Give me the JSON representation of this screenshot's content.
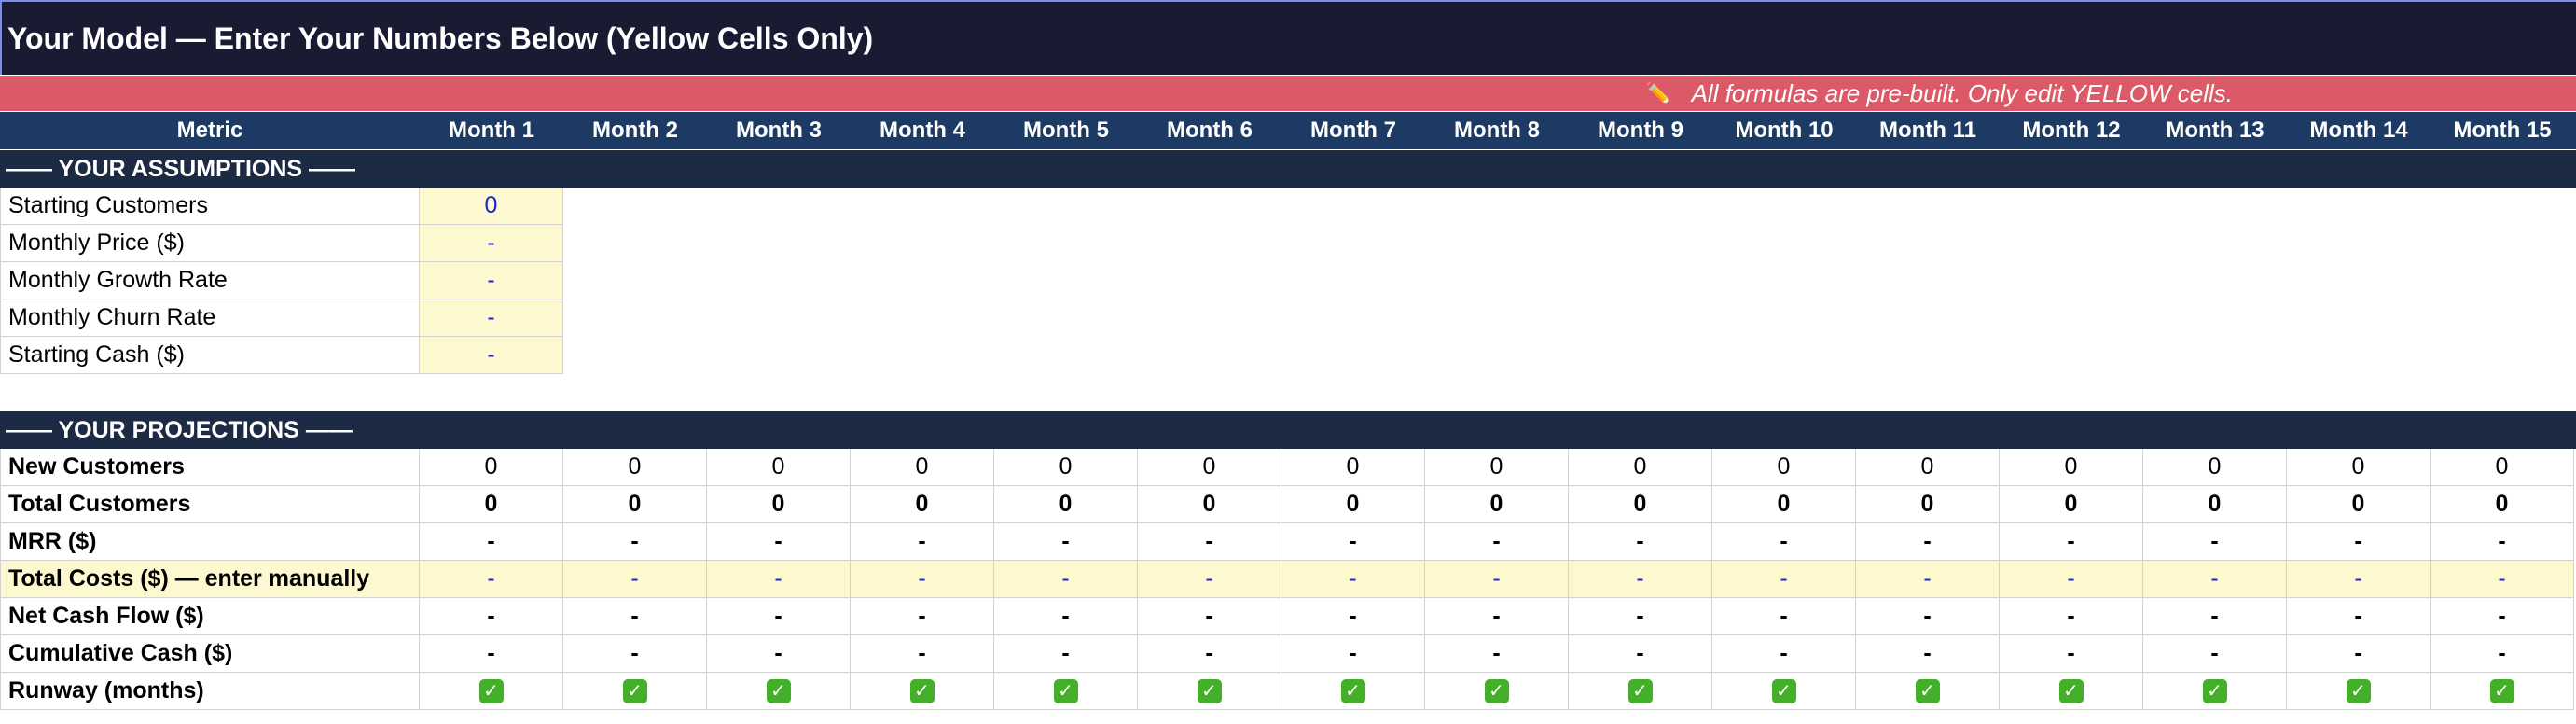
{
  "title": "Your Model — Enter Your Numbers Below (Yellow Cells Only)",
  "note": {
    "icon": "pencil-icon",
    "text": "All formulas are pre-built. Only edit YELLOW cells."
  },
  "header": {
    "metric_label": "Metric",
    "months": [
      "Month 1",
      "Month 2",
      "Month 3",
      "Month 4",
      "Month 5",
      "Month 6",
      "Month 7",
      "Month 8",
      "Month 9",
      "Month 10",
      "Month 11",
      "Month 12",
      "Month 13",
      "Month 14",
      "Month 15"
    ]
  },
  "assumptions": {
    "section_label": "—— YOUR ASSUMPTIONS ——",
    "rows": [
      {
        "label": "Starting Customers",
        "value": "0"
      },
      {
        "label": "Monthly Price ($)",
        "value": "-"
      },
      {
        "label": "Monthly Growth Rate",
        "value": "-"
      },
      {
        "label": "Monthly Churn Rate",
        "value": "-"
      },
      {
        "label": "Starting Cash ($)",
        "value": "-"
      }
    ]
  },
  "projections": {
    "section_label": "—— YOUR PROJECTIONS ——",
    "rows": [
      {
        "label": "New Customers",
        "bold_values": false,
        "editable": false,
        "values": [
          "0",
          "0",
          "0",
          "0",
          "0",
          "0",
          "0",
          "0",
          "0",
          "0",
          "0",
          "0",
          "0",
          "0",
          "0"
        ]
      },
      {
        "label": "Total Customers",
        "bold_values": true,
        "editable": false,
        "values": [
          "0",
          "0",
          "0",
          "0",
          "0",
          "0",
          "0",
          "0",
          "0",
          "0",
          "0",
          "0",
          "0",
          "0",
          "0"
        ]
      },
      {
        "label": "MRR ($)",
        "bold_values": true,
        "editable": false,
        "values": [
          "-",
          "-",
          "-",
          "-",
          "-",
          "-",
          "-",
          "-",
          "-",
          "-",
          "-",
          "-",
          "-",
          "-",
          "-"
        ]
      },
      {
        "label": "Total Costs ($) — enter manually",
        "bold_values": false,
        "editable": true,
        "values": [
          "-",
          "-",
          "-",
          "-",
          "-",
          "-",
          "-",
          "-",
          "-",
          "-",
          "-",
          "-",
          "-",
          "-",
          "-"
        ]
      },
      {
        "label": "Net Cash Flow ($)",
        "bold_values": true,
        "editable": false,
        "values": [
          "-",
          "-",
          "-",
          "-",
          "-",
          "-",
          "-",
          "-",
          "-",
          "-",
          "-",
          "-",
          "-",
          "-",
          "-"
        ]
      },
      {
        "label": "Cumulative Cash ($)",
        "bold_values": true,
        "editable": false,
        "values": [
          "-",
          "-",
          "-",
          "-",
          "-",
          "-",
          "-",
          "-",
          "-",
          "-",
          "-",
          "-",
          "-",
          "-",
          "-"
        ]
      },
      {
        "label": "Runway (months)",
        "bold_values": false,
        "editable": false,
        "check_icon": "check-mark-icon",
        "values": [
          "✓",
          "✓",
          "✓",
          "✓",
          "✓",
          "✓",
          "✓",
          "✓",
          "✓",
          "✓",
          "✓",
          "✓",
          "✓",
          "✓",
          "✓"
        ]
      }
    ]
  },
  "colors": {
    "title_bg": "#1a1b33",
    "note_bg": "#dc5a68",
    "header_bg": "#1c3a63",
    "section_bg": "#1c2a44",
    "input_bg": "#fdf8cf",
    "input_text": "#1a21d8",
    "check_bg": "#43b02a"
  }
}
